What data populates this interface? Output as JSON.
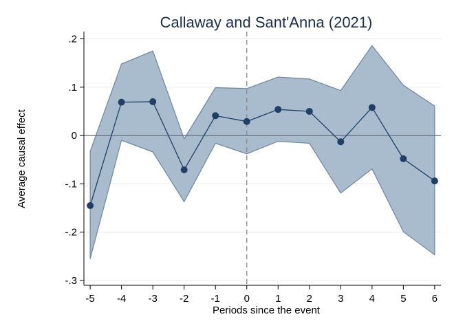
{
  "chart_data": {
    "type": "line",
    "title": "Callaway and Sant'Anna (2021)",
    "xlabel": "Periods since the event",
    "ylabel": "Average causal effect",
    "x": [
      -5,
      -4,
      -3,
      -2,
      -1,
      0,
      1,
      2,
      3,
      4,
      5,
      6
    ],
    "x_tick_labels": [
      "-5",
      "-4",
      "-3",
      "-2",
      "-1",
      "0",
      "1",
      "2",
      "3",
      "4",
      "5",
      "6"
    ],
    "y_ticks": [
      -0.3,
      -0.2,
      -0.1,
      0,
      0.1,
      0.2
    ],
    "y_tick_labels": [
      "-.3",
      "-.2",
      "-.1",
      "0",
      ".1",
      ".2"
    ],
    "xlim": [
      -5.2,
      6.2
    ],
    "ylim": [
      -0.31,
      0.215
    ],
    "series": [
      {
        "values": [
          -0.145,
          0.069,
          0.07,
          -0.071,
          0.041,
          0.029,
          0.054,
          0.05,
          -0.013,
          0.058,
          -0.048,
          -0.094
        ],
        "ci_upper": [
          -0.033,
          0.148,
          0.175,
          -0.007,
          0.099,
          0.097,
          0.121,
          0.117,
          0.093,
          0.186,
          0.104,
          0.061
        ],
        "ci_lower": [
          -0.255,
          -0.01,
          -0.034,
          -0.137,
          -0.016,
          -0.038,
          -0.012,
          -0.016,
          -0.119,
          -0.069,
          -0.199,
          -0.247
        ]
      }
    ],
    "reference_lines": {
      "horizontal_y": 0,
      "vertical_x": 0,
      "vertical_style": "dashed"
    },
    "grid": "horizontal",
    "colors": {
      "line": "#1f3f66",
      "marker": "#1f3f66",
      "band_fill": "#a9bccd",
      "band_edge": "#6b86a0",
      "title": "#1a2d4d",
      "grid": "#eaeaea",
      "reference": "#5f6f7f"
    }
  }
}
